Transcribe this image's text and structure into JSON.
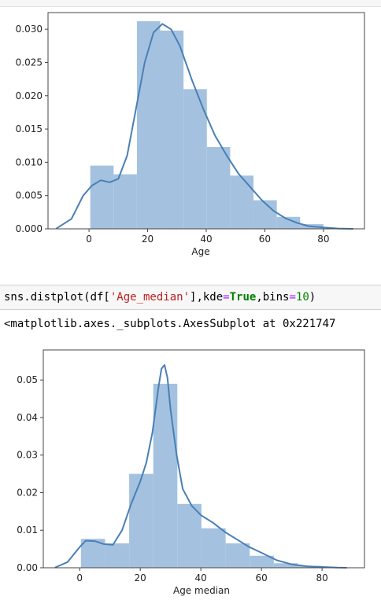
{
  "code_cell": {
    "code": "sns.distplot(df['Age_median'],kde=True,bins=10)",
    "parts": {
      "fn": "sns.distplot(df[",
      "arg": "'Age_median'",
      "mid": "],kde",
      "eq1": "=",
      "kw": "True",
      "comma": ",bins",
      "eq2": "=",
      "num": "10",
      "close": ")"
    }
  },
  "output_text": "<matplotlib.axes._subplots.AxesSubplot at 0x221747",
  "colors": {
    "bar": "#a4c2e0",
    "kde": "#4a7fb5",
    "axis": "#444444"
  },
  "chart_data": [
    {
      "type": "bar",
      "subtype": "histogram-with-kde",
      "xlabel": "Age",
      "ylabel": "",
      "title": "",
      "xlim": [
        -14,
        94
      ],
      "ylim": [
        0,
        0.0325
      ],
      "xticks": [
        0,
        20,
        40,
        60,
        80
      ],
      "yticks": [
        0.0,
        0.005,
        0.01,
        0.015,
        0.02,
        0.025,
        0.03
      ],
      "ytick_labels": [
        "0.000",
        "0.005",
        "0.010",
        "0.015",
        "0.020",
        "0.025",
        "0.030"
      ],
      "bins": [
        {
          "x0": 0.42,
          "x1": 8.38,
          "value": 0.0095
        },
        {
          "x0": 8.38,
          "x1": 16.34,
          "value": 0.0082
        },
        {
          "x0": 16.34,
          "x1": 24.29,
          "value": 0.0312
        },
        {
          "x0": 24.29,
          "x1": 32.25,
          "value": 0.0298
        },
        {
          "x0": 32.25,
          "x1": 40.21,
          "value": 0.021
        },
        {
          "x0": 40.21,
          "x1": 48.17,
          "value": 0.0123
        },
        {
          "x0": 48.17,
          "x1": 56.13,
          "value": 0.008
        },
        {
          "x0": 56.13,
          "x1": 64.08,
          "value": 0.0043
        },
        {
          "x0": 64.08,
          "x1": 72.04,
          "value": 0.0018
        },
        {
          "x0": 72.04,
          "x1": 80.0,
          "value": 0.0007
        }
      ],
      "kde": {
        "x": [
          -11,
          -6,
          -2,
          1,
          4,
          7,
          10,
          13,
          16,
          19,
          22,
          25,
          28,
          31,
          35,
          39,
          43,
          47,
          51,
          55,
          59,
          63,
          67,
          71,
          75,
          80,
          85,
          90
        ],
        "y": [
          0.0001,
          0.0015,
          0.005,
          0.0065,
          0.0073,
          0.007,
          0.0075,
          0.011,
          0.018,
          0.025,
          0.0295,
          0.0308,
          0.03,
          0.0275,
          0.0225,
          0.018,
          0.014,
          0.011,
          0.0083,
          0.0063,
          0.0043,
          0.0027,
          0.0016,
          0.0009,
          0.0004,
          0.0002,
          5e-05,
          0.0
        ]
      }
    },
    {
      "type": "bar",
      "subtype": "histogram-with-kde",
      "xlabel": "Age median",
      "ylabel": "",
      "title": "",
      "xlim": [
        -12,
        94
      ],
      "ylim": [
        0,
        0.058
      ],
      "xticks": [
        0,
        20,
        40,
        60,
        80
      ],
      "yticks": [
        0.0,
        0.01,
        0.02,
        0.03,
        0.04,
        0.05
      ],
      "ytick_labels": [
        "0.00",
        "0.01",
        "0.02",
        "0.03",
        "0.04",
        "0.05"
      ],
      "bins": [
        {
          "x0": 0.42,
          "x1": 8.38,
          "value": 0.0077
        },
        {
          "x0": 8.38,
          "x1": 16.34,
          "value": 0.0065
        },
        {
          "x0": 16.34,
          "x1": 24.29,
          "value": 0.025
        },
        {
          "x0": 24.29,
          "x1": 32.25,
          "value": 0.049
        },
        {
          "x0": 32.25,
          "x1": 40.21,
          "value": 0.017
        },
        {
          "x0": 40.21,
          "x1": 48.17,
          "value": 0.0105
        },
        {
          "x0": 48.17,
          "x1": 56.13,
          "value": 0.0065
        },
        {
          "x0": 56.13,
          "x1": 64.08,
          "value": 0.0032
        },
        {
          "x0": 64.08,
          "x1": 72.04,
          "value": 0.0012
        },
        {
          "x0": 72.04,
          "x1": 80.0,
          "value": 0.0005
        }
      ],
      "kde": {
        "x": [
          -8,
          -4,
          0,
          2,
          5,
          8,
          11,
          14,
          17,
          20,
          22,
          24,
          26,
          27,
          28,
          29,
          30,
          32,
          34,
          37,
          40,
          44,
          48,
          52,
          56,
          60,
          65,
          70,
          75,
          80,
          85,
          88
        ],
        "y": [
          0.0001,
          0.0015,
          0.0055,
          0.0072,
          0.0071,
          0.0063,
          0.0061,
          0.01,
          0.017,
          0.023,
          0.028,
          0.036,
          0.048,
          0.053,
          0.054,
          0.0505,
          0.042,
          0.03,
          0.021,
          0.0165,
          0.014,
          0.012,
          0.0095,
          0.0075,
          0.0055,
          0.004,
          0.002,
          0.0009,
          0.0004,
          0.0002,
          5e-05,
          0.0
        ]
      }
    }
  ]
}
